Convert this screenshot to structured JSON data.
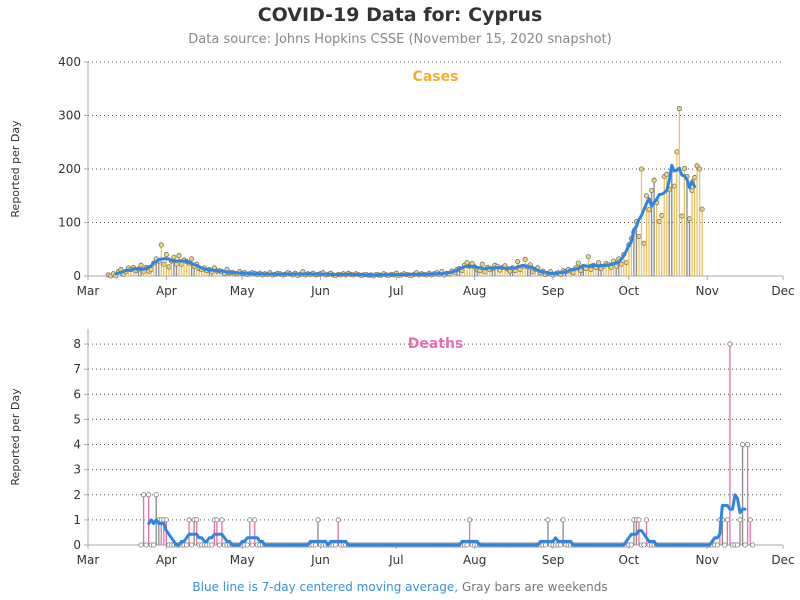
{
  "header": {
    "title": "COVID-19 Data for: Cyprus",
    "subtitle": "Data source: Johns Hopkins CSSE (November 15, 2020 snapshot)"
  },
  "footnote": {
    "blue_part": "Blue line is 7-day centered moving average,",
    "gray_part": "Gray bars are weekends"
  },
  "colors": {
    "cases": "#f0b030",
    "cases_bar": "#ecc35c",
    "deaths": "#e76fb0",
    "weekend_bar": "#888888",
    "moving_average": "#2e86e0",
    "grid": "#555555",
    "axis": "#aaaaaa"
  },
  "chart_data": [
    {
      "type": "bar",
      "panel_label": "Cases",
      "ylabel": "Reported per Day",
      "x_start_date": "2020-03-09",
      "xlim": [
        "2020-03-01",
        "2020-12-01"
      ],
      "ylim": [
        0,
        400
      ],
      "yticks": [
        0,
        100,
        200,
        300,
        400
      ],
      "xtick_labels": [
        "Mar",
        "Apr",
        "May",
        "Jun",
        "Jul",
        "Aug",
        "Sep",
        "Oct",
        "Nov",
        "Dec"
      ],
      "grid": true,
      "values": [
        2,
        0,
        4,
        0,
        8,
        12,
        3,
        8,
        15,
        12,
        16,
        10,
        13,
        20,
        8,
        16,
        9,
        12,
        24,
        32,
        28,
        58,
        22,
        40,
        17,
        28,
        35,
        22,
        38,
        22,
        30,
        27,
        24,
        32,
        18,
        22,
        14,
        12,
        15,
        10,
        12,
        8,
        15,
        9,
        10,
        8,
        5,
        12,
        6,
        7,
        5,
        4,
        8,
        5,
        6,
        3,
        4,
        6,
        5,
        3,
        5,
        2,
        4,
        3,
        6,
        2,
        3,
        5,
        4,
        2,
        3,
        6,
        4,
        2,
        5,
        1,
        3,
        8,
        2,
        4,
        3,
        5,
        2,
        3,
        4,
        6,
        2,
        3,
        5,
        2,
        1,
        3,
        2,
        4,
        2,
        5,
        3,
        2,
        4,
        3,
        1,
        2,
        3,
        1,
        2,
        0,
        3,
        2,
        1,
        4,
        2,
        1,
        3,
        2,
        5,
        1,
        2,
        4,
        3,
        2,
        1,
        3,
        6,
        2,
        4,
        3,
        2,
        5,
        2,
        4,
        6,
        3,
        8,
        2,
        5,
        4,
        9,
        7,
        12,
        14,
        10,
        20,
        25,
        18,
        23,
        17,
        12,
        10,
        22,
        8,
        16,
        12,
        14,
        20,
        18,
        11,
        16,
        19,
        13,
        9,
        15,
        10,
        27,
        12,
        18,
        31,
        17,
        21,
        8,
        12,
        15,
        6,
        9,
        3,
        5,
        8,
        2,
        4,
        6,
        3,
        10,
        8,
        12,
        9,
        6,
        15,
        24,
        10,
        18,
        14,
        36,
        12,
        20,
        16,
        25,
        14,
        18,
        23,
        21,
        16,
        28,
        18,
        32,
        22,
        40,
        25,
        58,
        70,
        82,
        102,
        74,
        200,
        61,
        150,
        124,
        160,
        179,
        137,
        102,
        113,
        186,
        190,
        162,
        198,
        168,
        232,
        313,
        112,
        201,
        186,
        107,
        160,
        184,
        206,
        200,
        125
      ]
    },
    {
      "type": "bar",
      "panel_label": "Deaths",
      "ylabel": "Reported per Day",
      "x_start_date": "2020-03-22",
      "xlim": [
        "2020-03-01",
        "2020-12-01"
      ],
      "ylim": [
        0,
        8.6
      ],
      "yticks": [
        0,
        1,
        2,
        3,
        4,
        5,
        6,
        7,
        8
      ],
      "xtick_labels": [
        "Mar",
        "Apr",
        "May",
        "Jun",
        "Jul",
        "Aug",
        "Sep",
        "Oct",
        "Nov",
        "Dec"
      ],
      "grid": true,
      "values": [
        0,
        2,
        0,
        2,
        0,
        0,
        2,
        1,
        1,
        1,
        1,
        0,
        0,
        0,
        0,
        0,
        0,
        0,
        0,
        1,
        0,
        1,
        1,
        0,
        0,
        0,
        0,
        0,
        0,
        1,
        1,
        0,
        1,
        0,
        0,
        0,
        0,
        0,
        0,
        0,
        0,
        0,
        0,
        1,
        0,
        1,
        0,
        0,
        0,
        0,
        0,
        0,
        0,
        0,
        0,
        0,
        0,
        0,
        0,
        0,
        0,
        0,
        0,
        0,
        0,
        0,
        0,
        0,
        0,
        0,
        1,
        0,
        0,
        0,
        0,
        0,
        0,
        0,
        1,
        0,
        0,
        0,
        0,
        0,
        0,
        0,
        0,
        0,
        0,
        0,
        0,
        0,
        0,
        0,
        0,
        0,
        0,
        0,
        0,
        0,
        0,
        0,
        0,
        0,
        0,
        0,
        0,
        0,
        0,
        0,
        0,
        0,
        0,
        0,
        0,
        0,
        0,
        0,
        0,
        0,
        0,
        0,
        0,
        0,
        0,
        0,
        0,
        0,
        0,
        0,
        1,
        0,
        0,
        0,
        0,
        0,
        0,
        0,
        0,
        0,
        0,
        0,
        0,
        0,
        0,
        0,
        0,
        0,
        0,
        0,
        0,
        0,
        0,
        0,
        0,
        0,
        0,
        0,
        0,
        0,
        0,
        1,
        0,
        0,
        0,
        0,
        0,
        1,
        0,
        0,
        0,
        0,
        0,
        0,
        0,
        0,
        0,
        0,
        0,
        0,
        0,
        0,
        0,
        0,
        0,
        0,
        0,
        0,
        0,
        0,
        0,
        0,
        0,
        0,
        0,
        1,
        1,
        1,
        0,
        0,
        1,
        0,
        0,
        0,
        0,
        0,
        0,
        0,
        0,
        0,
        0,
        0,
        0,
        0,
        0,
        0,
        0,
        0,
        0,
        0,
        0,
        0,
        0,
        0,
        0,
        0,
        0,
        0,
        0,
        1,
        1,
        0,
        1,
        8,
        0,
        0,
        0,
        1,
        4,
        0,
        4,
        1,
        0
      ]
    }
  ]
}
